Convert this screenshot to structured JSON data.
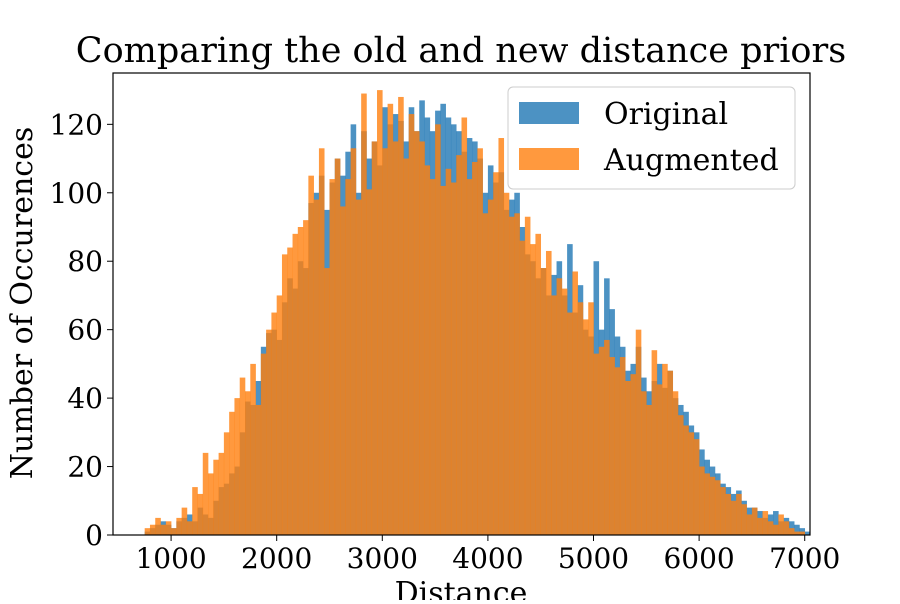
{
  "chart_data": {
    "type": "histogram",
    "title": "Comparing the old and new distance priors",
    "xlabel": "Distance",
    "ylabel": "Number of Occurences",
    "xlim": [
      450,
      7050
    ],
    "ylim": [
      0,
      135
    ],
    "xticks": [
      1000,
      2000,
      3000,
      4000,
      5000,
      6000,
      7000
    ],
    "yticks": [
      0,
      20,
      40,
      60,
      80,
      100,
      120
    ],
    "bin_start": 750,
    "bin_width": 50,
    "legend_position": "top-right",
    "series": [
      {
        "name": "Original",
        "color": "#1f77b4",
        "opacity": 0.8,
        "values": [
          1,
          2,
          3,
          4,
          3,
          2,
          4,
          5,
          6,
          4,
          8,
          6,
          5,
          10,
          14,
          15,
          18,
          20,
          30,
          39,
          38,
          45,
          55,
          59,
          60,
          57,
          68,
          75,
          72,
          80,
          78,
          97,
          100,
          105,
          95,
          103,
          110,
          105,
          112,
          120,
          100,
          118,
          110,
          115,
          108,
          125,
          120,
          123,
          121,
          115,
          125,
          118,
          127,
          122,
          118,
          124,
          126,
          122,
          120,
          118,
          112,
          116,
          115,
          110,
          100,
          108,
          103,
          106,
          95,
          98,
          100,
          90,
          82,
          80,
          75,
          78,
          70,
          76,
          80,
          70,
          85,
          65,
          73,
          60,
          58,
          80,
          60,
          75,
          66,
          58,
          55,
          48,
          50,
          55,
          46,
          42,
          45,
          50,
          43,
          48,
          40,
          38,
          36,
          32,
          30,
          25,
          22,
          20,
          18,
          15,
          14,
          12,
          13,
          10,
          8,
          8,
          7,
          5,
          6,
          7,
          4,
          5,
          4,
          3,
          2,
          1
        ]
      },
      {
        "name": "Augmented",
        "color": "#ff7f0e",
        "opacity": 0.8,
        "values": [
          2,
          3,
          5,
          3,
          4,
          2,
          5,
          8,
          4,
          14,
          12,
          24,
          18,
          22,
          24,
          30,
          36,
          40,
          46,
          42,
          50,
          38,
          53,
          60,
          65,
          70,
          82,
          84,
          88,
          90,
          92,
          105,
          98,
          113,
          78,
          104,
          110,
          96,
          104,
          113,
          98,
          129,
          101,
          115,
          130,
          113,
          126,
          115,
          128,
          110,
          123,
          118,
          115,
          108,
          104,
          120,
          102,
          107,
          103,
          111,
          122,
          104,
          109,
          113,
          94,
          98,
          106,
          116,
          100,
          93,
          94,
          86,
          93,
          85,
          88,
          78,
          83,
          70,
          75,
          72,
          65,
          77,
          68,
          63,
          68,
          53,
          55,
          57,
          52,
          49,
          52,
          45,
          47,
          60,
          42,
          38,
          54,
          44,
          50,
          48,
          42,
          35,
          32,
          30,
          28,
          20,
          18,
          17,
          16,
          14,
          12,
          10,
          12,
          9,
          6,
          8,
          5,
          7,
          4,
          3,
          6,
          4,
          2,
          1,
          1,
          0
        ]
      }
    ]
  }
}
